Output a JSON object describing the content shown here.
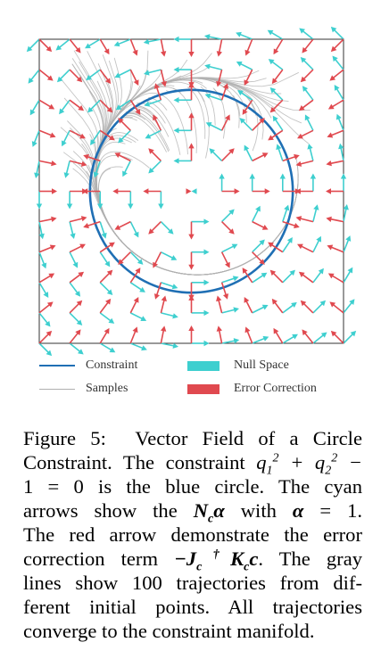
{
  "chart_data": {
    "type": "vector_field",
    "title": "",
    "xlim": [
      -1.5,
      1.5
    ],
    "ylim": [
      -1.5,
      1.5
    ],
    "grid": false,
    "circle": {
      "center": [
        0,
        0
      ],
      "radius": 1,
      "color": "#1f6fb4"
    },
    "grid_points": 11,
    "trajectory_count": 100,
    "colors": {
      "null_space": "#3ecfcf",
      "error": "#e0494f",
      "samples": "#b0b0b0",
      "constraint": "#1f6fb4"
    }
  },
  "legend": {
    "constraint": "Constraint",
    "samples": "Samples",
    "null_space": "Null Space",
    "error_correction": "Error Correction"
  },
  "caption": {
    "l1a": "Figure 5:",
    "l1b": "Vector Field of a Circle",
    "l2": "Constraint. The constraint ",
    "l3": "1 = 0 is the blue circle. The cyan",
    "l4a": "arrows show the ",
    "l4b": " with ",
    "l4c": " = 1.",
    "l5": "The red arrow demonstrate the error",
    "l6a": "correction term ",
    "l6b": ". The gray",
    "l7": "lines show 100 trajectories from dif-",
    "l8": "ferent initial points. All trajectories",
    "l9": "converge to the constraint manifold."
  }
}
